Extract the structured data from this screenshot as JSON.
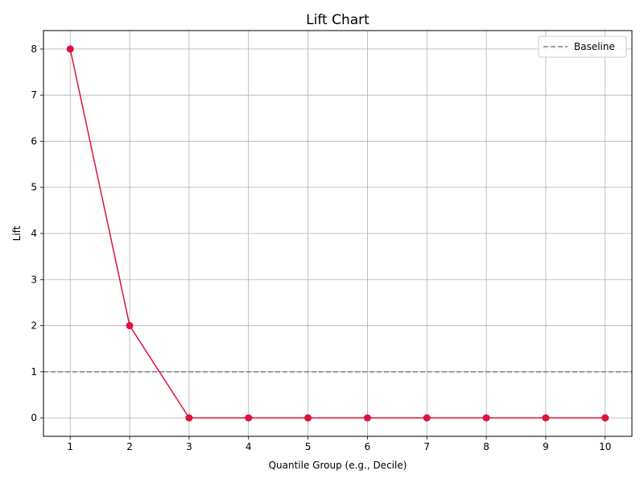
{
  "chart_data": {
    "type": "line",
    "title": "Lift Chart",
    "xlabel": "Quantile Group (e.g., Decile)",
    "ylabel": "Lift",
    "x": [
      1,
      2,
      3,
      4,
      5,
      6,
      7,
      8,
      9,
      10
    ],
    "series": [
      {
        "values": [
          8,
          2,
          0,
          0,
          0,
          0,
          0,
          0,
          0,
          0
        ],
        "color": "#dc143c",
        "marker": "circle"
      }
    ],
    "baseline": {
      "name": "Baseline",
      "value": 1,
      "color": "#808080",
      "style": "dashed"
    },
    "xticks": [
      1,
      2,
      3,
      4,
      5,
      6,
      7,
      8,
      9,
      10
    ],
    "yticks": [
      0,
      1,
      2,
      3,
      4,
      5,
      6,
      7,
      8
    ],
    "xlim": [
      0.55,
      10.45
    ],
    "ylim": [
      -0.4,
      8.4
    ],
    "grid": true,
    "legend_position": "top-right"
  }
}
